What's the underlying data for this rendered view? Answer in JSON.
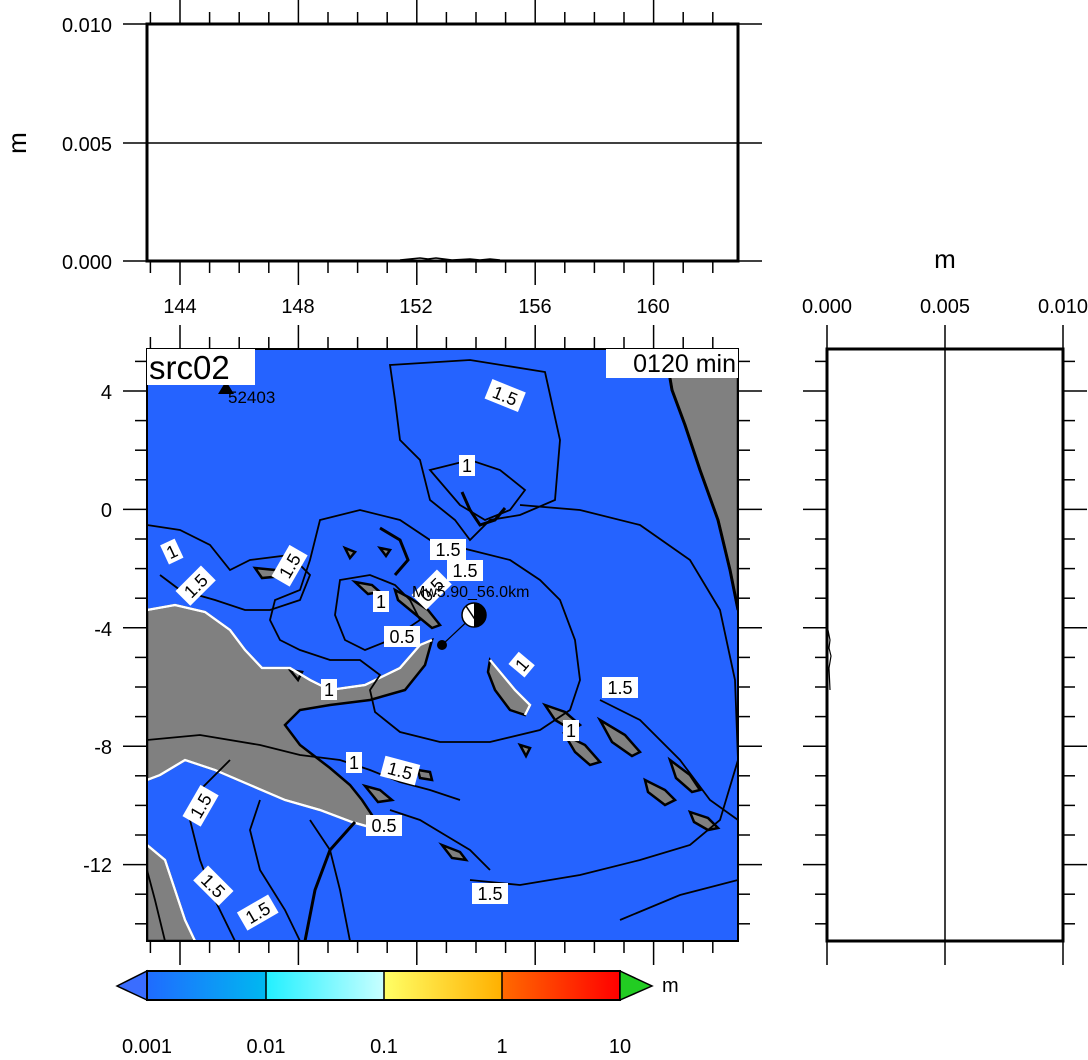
{
  "top_panel": {
    "y_label": "m",
    "y_ticks": [
      "0.010",
      "0.005",
      "0.000"
    ],
    "x_ticks": [
      "144",
      "148",
      "152",
      "156",
      "160"
    ]
  },
  "right_panel": {
    "x_label": "m",
    "x_ticks": [
      "0.000",
      "0.005",
      "0.010"
    ]
  },
  "map": {
    "title": "src02",
    "time_label": "0120 min",
    "lat_ticks": [
      "4",
      "0",
      "-4",
      "-8",
      "-12"
    ],
    "station_label": "52403",
    "source_label": "Mw5.90_56.0km",
    "ocean_color": "#2563ff",
    "land_color": "#808080",
    "contour_labels": [
      "1.5",
      "1",
      "1.5",
      "1.5",
      "1",
      "1.5",
      "1.5",
      "1",
      "0.5",
      "0.5",
      "1.5",
      "1",
      "1",
      "1",
      "1.5",
      "1.5",
      "0.5",
      "1.5",
      "1.5",
      "1",
      "1.5"
    ]
  },
  "colorbar": {
    "tick_labels": [
      "0.001",
      "0.01",
      "0.1",
      "1",
      "10"
    ],
    "unit": "m",
    "colors": [
      "#1f6bff",
      "#00c8ff",
      "#3dffff",
      "#ffff66",
      "#ffb000",
      "#ff4000",
      "#ff0000"
    ],
    "over_color": "#22cc22",
    "under_color": "#3a6dff"
  }
}
